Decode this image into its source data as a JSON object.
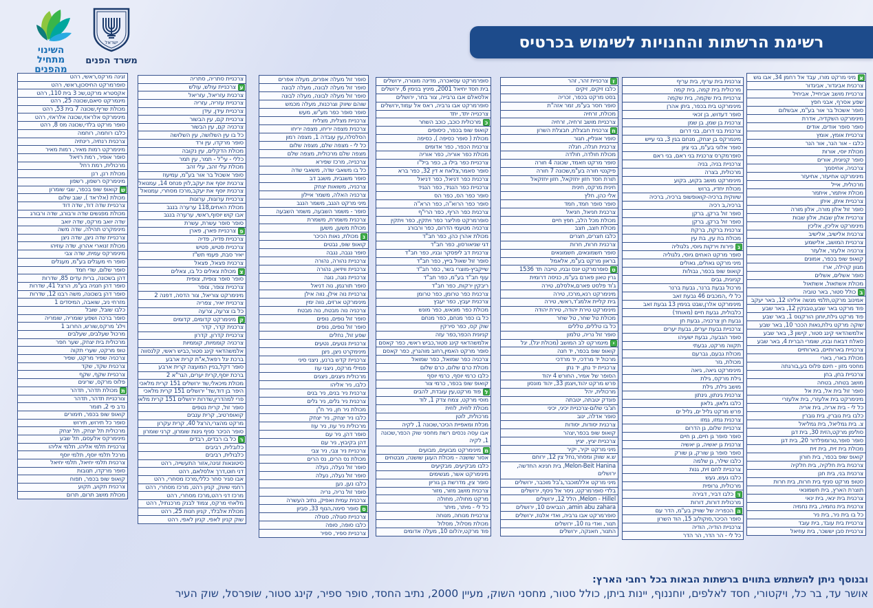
{
  "header": {
    "title": "רשימת הרשתות והחנויות לשימוש בכרטיס"
  },
  "logos": {
    "slogan_lines": [
      "השינוי",
      "מתחיל",
      "מהפנים"
    ],
    "ministry_name": "משרד הפנים",
    "emblem_label": "ישראל"
  },
  "footer": {
    "heading": "ובנוסף ניתן להשתמש בתווים ברשתות הבאות בכל רחבי הארץ:",
    "networks": "אושר עד, בר כל, ויקטורי, חסד לאלפים, יוחננוף, יינות ביתן, כולל סטור, מחסני השוק, מעיין 2000, נתיב החסד, סופר ספיר, קינג סטור, שופרסל, שוק העיר"
  },
  "colors": {
    "banner": "#1d4b8b",
    "box_border": "#34508c",
    "text": "#1c3f7d",
    "marker_green": "#3fae49",
    "background": "#dce2f4"
  },
  "columns": [
    {
      "side": "rightmost",
      "items": [
        {
          "t": "מיני מרקט מורו, עבד אל רחמן 34, אבו גוש",
          "m": "א"
        },
        "צרכנית אביגדור, אביגדור",
        "צרכניית מושב אביחייל, אביחיל",
        "שפע אסרף, אבני חפץ",
        "סופר אשכול בר אור בע\"מ, אבשלום",
        "מינימרקט השקדיה, אדרת",
        "סופר סופר אודים, אודים",
        "צרכניית אומץ, אומץ",
        "כלבו - אור הנר, אור הנר",
        "מכולת יוסי, אורות",
        "סופר קניונית, אורים",
        "צרכניה, אחיסמך",
        "מינימרקט אחיעזר, אחיעזר",
        "מרכולית, אייל",
        "מכולת איתמר, איתמר",
        "צרכניית איתן, איתן",
        "סופר זול אלון מורה, אלון מורה",
        "צרכניית אלון שבות, אלון שבות",
        "מינימרקט אליכין, אליכין",
        "צרכנית אלישיב, אלישיב",
        "צרכניית המושב, אלישמע",
        "צרכניה אלעזר, אלעזר",
        "קואופ שופ בכפר, אמונים",
        "מגוון קהילה, ארז",
        "סופר אשלים, אשלים",
        "מכולת אשתאול, אשתאול",
        {
          "t": "כולל סטור, באר טוביה",
          "m": "ב"
        },
        "אמינוב מרקט,תלמי מנשה אליהו 12, באר יעקב",
        "פוד מרקט באר שבע,טבנקין 12, באר שבע",
        "פוד מרקט גילת,יוחנן הורקנוס 1, באר שבע",
        "שוקה מרקט גילת,נאות הככר 10, באר שבע",
        "אלמשהדאוי קינג סטור, קישון 3, באר שבע",
        "סאלח דבאח ובניו, שומרי הברית 4, באר שבע",
        "צרכניית בארותיים, בארותיים",
        "מכולת בארי, בארי",
        "מחסני מזון - חינם פלוס בע,בורגתה",
        "צרכניית בחן, בחן",
        "מושב בטחה, בטחה",
        "סופר זול בית אל, בית אל",
        "מינימרקט בית אלעזרי, בית אלעזרי",
        "כל לי - בית אריה, בית אריה",
        "כלבו בית גוברין, בית גוברין",
        "צ. בית גמליאל, בית גמליאל",
        "סולימן מרקט,הזית 30, בית דגן",
        "סופר סופר,טרומפלדור 20, בית דגן",
        "מכולת בית זית, בית זית",
        "קואופ שופ בכפר, בית חורון",
        "צרכנית בית חלקיה, בית חלקיה",
        "צרכנית בני, בית חנן",
        "סטופ מרקט סניף בית חרות, בית חרות",
        "תוצרת הארץ, בית חשמונאי",
        "צרכנית בית ינאי, בית ינאי",
        "צרכנית בית נחמיה, בית נחמיה",
        "כל בו בית ניר, בית ניר",
        "צרכניית בית עובד, בית עובד",
        "צרכניית סבן יששכר, בית עוזיאל"
      ]
    },
    {
      "side": "2nd-from-right",
      "items": [
        "צרכנית בית עריף, בית עריף",
        "מרכולית בית קמה, בית קמה",
        "צרכניית בית שקמה, בית שקמה",
        "מינימרקט בית בכפר, ביתן אהרן",
        "סופר דעדוש, בן זכאי",
        "צרכנית בן שמן, בן שמן",
        "צרכנית בני דרום, בני דרום",
        "מינמרקס בן יצחק, מנחם בגין 3, בני עייש",
        "סופר אלוני בע\"מ, בני ציון",
        "סופרמקרס צרכנית בני ראם, בני ראם",
        "צרכניית בניה, בניה",
        "מרכולית, בצרה",
        "מינימרקט מושב בקוע, בקוע",
        "מכולת יחדיו, ברוש",
        "שיווקית ברכיה-קואופשופ ברכיה, ברכיה",
        "ברכיה,ב רכיה",
        "סופר זול ברקן, ברקן",
        "סופר זול ברקן, ברקן",
        "צרכנית ברקת, ברקת",
        "מכולת בת עין, בת עין",
        {
          "t": "פירות וירקות גיוסי, גלגוליה",
          "m": "ג"
        },
        "סופר מרקט האחים גיוסי, גלגוליה",
        "מיני מרקט גאולים, גאולים",
        "קואופ שופ בכפר, גבולות",
        "קניונית, גבים",
        "מרכול גבעת ברנר, גבעת ברנר",
        "כל לי ,המכבים 46 גבעת זאב",
        "מינימרקט אלרן,שבט בנימין 13 גבעת זאב",
        "כלבולית, גבעת חיים (מאוחד)",
        "גבעת חן צרכניה, גבעת חן",
        "צרכניית גבעת יערים, גבעת יערים",
        "סופר הגבעה, גבעת ישעיהו",
        "תקווה מרקט, גבעתי",
        "מכולת גבעם, גברעם",
        "מכולת, גזר",
        "מינימרקט גיאה, גיאה",
        "גילת מרקס, גילת",
        "מושב גילת, גילת",
        "צרכנית גינתון, גינתון",
        "כלבו גלאון, גלאון",
        "פרש מרקט גליל ים, גליל ים",
        "צרכנית גמזו, גמזו",
        "צרכניית שלום, גן הדרום",
        "סופר סופר גן חיים, גן חיים",
        "צרכנית גן יאשיה, גן יאשיה",
        "סופר סופר גן שורק, גן שורק",
        "כלבו שילר, גן שלמה",
        "צרכניית לחם זית, גנות",
        "כלבו געש, געש",
        "מרכולית, גרופית",
        {
          "t": "כלבו דביר, דבירה",
          "m": "ד"
        },
        "מרכולית דורות, דורות",
        {
          "t": "הכפריה של שוויק בע\"מ, הדר עם",
          "m": "ה"
        },
        "סופר הכיכר,סוקולוב 15, הוד השרון",
        "צרכניית הודיה, הודיה",
        "כל לי - הר הדר, הר הדר"
      ]
    },
    {
      "side": "3rd-from-right",
      "items": [
        {
          "t": "צרכניית זהר, זהר",
          "m": "ז"
        },
        "כלבו זיקים, זיקים",
        "בסט מרקט בכפר, זכריה",
        "סופר חסר בע\"מ, זמר אזה\"ת",
        "מכולת, זרחיה",
        "צרכניית מושב זרחיה, זרחיה",
        {
          "t": "צרכנית חבצלת, חבצלת השרון",
          "m": "ח"
        },
        "סופר אונליין, חגור",
        "צרכנית חגלה, חגלה",
        "מכולת חולדה, חולדה",
        "סופר מרקט חאמד, שכונה 4 חורה",
        "פיקנטי חורה בע\"מ,שכונה 7 חורה",
        "תורת חסד חזון יחזקאל, חזון יחזקאל",
        "חינית מרקס, חינית",
        "אלי כהן, חלץ",
        "סופר סופר חמד, חמד",
        "צרכנית חניאל, חניאל",
        "מכולת מכל הלב, חפץ חיים",
        "מכולת חצב, חצב",
        "כלבו חצרים, חצרים",
        "צרכנית חרות, חרות",
        "סופר חשמונאים, חשמונאים",
        "בראון מרקט בע\"מ, אלאמל",
        {
          "t": "סופרמרקט יונס ובניו, טייבה תד 1536",
          "m": "ט"
        },
        "גרין טאון פארם בע\"מ, כניסה דרומית",
        "ג'וד פלסט פארם,אלסלם, טירה",
        "מינימרקט רנא,מרכז, טירה",
        "בית קליית אלמג'ד,ראשי, טירה",
        "מינימרקט טירת יהודה, טירת יהודה",
        "מכולת טל שחר, טל שחר",
        "כל בו טללים, טללים",
        "סופר זול נריה, טלמון",
        {
          "t": "מינמרקט לב המושב (מכולת יגל), יגל",
          "m": "י"
        },
        "קואופ שופ בכפר, יד חנה",
        "מרכול יד מרדכי, יד מרדכי",
        "צרכניית יד נתן, יד נתן",
        "הסופר של אמיר, החורש 4 יהוד",
        "פרש מרקט יהוד,ויצמן 33, יהוד מונסון",
        "מרכולית, יהל",
        "פונדק יטבתה, יטבתה",
        "חג'בי שלום-צרכניית יכיני, יכיני",
        "סופר אדלה, ינוב",
        "צרכנית יסודות, יסודות",
        "קואופ שופ בכפר,יצהר",
        "צרכניית יציץ, יציץ",
        "מיני מרקט יקיר, יקיר",
        "ש.א שווק ומסחר,נחל צין 12, ירוחם",
        "Melon-Beit Hanina, בית חנינא החדשה, ירושלים",
        "מיני מרקט אללמוכבר,ג'בל מוכבר, ירושלים",
        "בלדי סופרמרקט, ניסר אל ניסף, ירושלים",
        "Melon - Hillel, הלל 12, ירושלים",
        "amin abu zahara, הנביאים 10, ירושלים",
        "סופרמרקט אבו גרביה, ואדי אלגוז, ירושלים",
        "תנור, ואדי גוז 10, ירושלים",
        "התנור, חאנקה, ירושלים"
      ]
    },
    {
      "side": "4th-from-right",
      "items": [
        "סופרמרקט עסאכרה, מדינה מונורה, ירושלים",
        "בית חסד יחיאל 2001, מיניץ בנימין 6, ירושלים",
        "אלסאלם אבו גרבייה, צור בחר, ירושלים",
        "סופרמרקט אבו גרביה, ראס אל עמוד,ירושלים",
        "צרכנייה יתד, יתד",
        {
          "t": "מרכולית כוכב, כוכב השחר",
          "m": "כ"
        },
        "קואופ שופ בכפר, כיסופים",
        "מכולת ( סופר כסיפה ), כסיפה",
        "צרכנית הכפר, כפר אדומים",
        "מכולת כפר אוריה, כפר אוריה",
        "צרכניית כפר בילו ב, כפר ביל\"ו",
        "סופר סאמר,צלאח א דין 32, כפר ברא",
        "צרכנית כפר דניאל, כפר דניאל",
        "צרכניית כפר הנגיד, כפר הנגיד",
        "סופר כפר הס, כפר הס",
        "סופר כפר הרוא\"ה, כפר הרא\"ה",
        "צרכנית כפר הריף, כפר הרי\"ף",
        "סופרמרקט פוליצר כפר ויתקין, כפר ויתקין",
        "צרכניה מטעמי הדרום, כפר ורבורג",
        "מכולת אהרן כהן, כפר חב\"ד",
        "דגי שניאורסון, כפר חב\"ד",
        "צרכנית דב ליפסקר ובניו, כפר חב\"ד",
        "סופר זול שאול בייץ, כפר חב\"ד",
        "שייקביץ-מוצרי בשר, כפר חב\"ד",
        "עוף חב\"ד בע\"מ, כפר חב\"ד",
        "ריבקין ירקות, כפר חב\"ד",
        "צרכנית כפר טרומן, כפר טרומן",
        "צרכנית יעבץ, כפר יעבץ",
        "מכולת כפר מונאש, כפר מונש",
        "כל בו כפר מנחם, כפר מנחם",
        "שוק קס, כפר סירקין",
        "קניונית הכפר,כפר עזה",
        "אלמשהדאוי קינג סטור,כביש ראשי, כפר קאסם",
        "סופר מרקט האמין,רחוב מוהגרין, כפר קאסם",
        "צרכניה כפר שמואל, כפר שמואל",
        "מכולת כרם שלום, כרם שלום",
        "כלבו כרמי יוסף, כרמי יוסף",
        "קואופ שופ בכפר, כרמי צור",
        {
          "t": "פוד מרקט,עין עובדת, להבים",
          "m": "ל"
        },
        "מוסי מרקט, צמח צדק 1, לוד",
        "מכולת לוזית, לוזית",
        "מרכולית, לוטן",
        "מכלת ומאפיית הכיכר,שכונה 1, לקיה",
        "אבו עסה נכסים רשת מחסני שוק הכפר,שכונה 1, לקיה",
        {
          "t": "מינימרקט מבועים, מבועים",
          "m": "מ"
        },
        "אסור שושנה - מכולת העוגן שושנה, מבטחים",
        "כלבו מבקיעים, מבקיעים",
        "מינימרקט אשר, מגשימים",
        "סופר צין, מדרשת בן גוריון",
        "צרכנית מושב מזור, מזור",
        "מרקט מחולה, מחולה",
        "כל לי - מיתר, מיתר",
        "צרכניית מנוחה, מנוחה",
        "מכולת מסלול, מסלול",
        "פוד מרקט,יהלום 10, מעלה אדומים"
      ]
    },
    {
      "side": "5th-from-right",
      "items": [
        "סופר זול מעלה אפרים, מעלה אפרים",
        "סופר זול מעלה לבונה, מעלה לבונה",
        "סופר זול מעלה לבונה, מעלה לבונה",
        "שוהם שיווק וצרכנות, מעלה מכמש",
        "סופר סופר כפר מע\"ש, מעש",
        "צרכניית מצלית, מצליח",
        "צרכנית מצפה יריחו, מצפה יריחו",
        "הסלסלה,עין עובדה 1, מצפה רמון",
        "כל לי - מצפה שלם, מצפה שלום",
        "מצפה שלם מרכולית, מצפה שלם",
        "צרכנייה, מרכז שפירא",
        "כל בו משאבי שדה, משאבי שדה",
        "סופר משגבית, משגב דב",
        "צרכניה, משואות יצחק",
        "צרכניה האלה, משמר איילון",
        "מיני מרקט הנגב, משמר הנגב",
        "סופר - משמר השבעה, משמר השבעה",
        "צרכנית משמרת, משמרת",
        "מכולת משען, משען",
        {
          "t": "מכולת, נאות הכיכר",
          "m": "נ"
        },
        "קואופ שופ, נבטים",
        "סופר נגבה, נגבה",
        "צרכניית נהורה, נהורה",
        "צרכניית וויזיאן, נהורה",
        "צרכניית נוגה, נוגה",
        "סופר תורגמן, נוה דניאל",
        "צרכניית נוה אילן, נווה אילן",
        "מינימרקט ארזים, נווה ימין",
        "צרכניה נוה מבטח, נוה מבטח",
        "סופר זול נופים, נופים",
        "סופר זול נופים, נופים",
        "שפע זול, נחלים",
        "צרכניית נטעים, נטעים",
        "מינימקרט ניצן, ניצן",
        "צרכניית קדש ברנע, ניצני סיני",
        "פמילי מרקס, ניצני עוז",
        "מרכולית ניצנים, ניצנים",
        "כלבו, ניר אליהו",
        "צרכנית ניר בנים, ניר בנים",
        "צרכנית ניר גלים, ניר גלים",
        "מכולת ניר חן, ניר ח\"ן",
        "כלבו ניר יצחק, ניר יצחק",
        "מרכולית ניר עוז, ניר עוז",
        "סופר דהן, ניר עם",
        "דהן בקיבוץ, ניר עם",
        "צרכניית ניר צבי, ניר צבי",
        "מכולת נס הרים, נס הרים",
        "סופר זול נעלה, נעלה",
        "סופר זול נעלה, נעלה",
        "כלבו נען, נען",
        "סופר זול נריה, נריה",
        "צרכנית עמית ואפיק, נתיב העשרה",
        {
          "t": "סופר סימה,הנוף 33, סביון",
          "m": "ס"
        },
        "צרכניית סגולה, סגולה",
        "כלבו סופה, סופה",
        "צרכניית ספיר, ספיר"
      ]
    },
    {
      "side": "6th-from-right",
      "items": [
        "צרכניית סתריה, סתריה",
        {
          "t": "צרכניית עולש, עולש",
          "m": "ע"
        },
        "צרכנית עזריאל, עזריאל",
        "צרכניית עזריה, עזריה",
        "צרכניית עידן, עידן",
        "צרכניית קם, עין הבשור",
        "צרכניה קם, עין הבשור",
        "כל בו עין השלושה, עין השלושה",
        "סופר מרקדו, עין ורד",
        "מכולת הדקלים, עין נקובה",
        "כללי - עי\"ל - תמר, עין תמר",
        "מכולת עלי זהב, עלי זהב",
        "סופר אשכול בר אור בע\"מ, עמיעוז",
        "צרכנית יוסף את יעקב,לוין פנחס 14, עמנואל",
        "צרכנית יוסף את יעקב,מרכז מסחרי, עמנואל",
        "צרכניית ערוגות, ערוגות",
        "מכולת האחים,118 ערערה בנגב",
        "אבו קוש יוסוף,ראשי, ערערה בנגב",
        "סופר סופר עשרת, עשרת",
        {
          "t": "צרכניית פארן, פארן",
          "m": "פ"
        },
        "צרכניית פדיה, פדיה",
        "צרכניית פטיש, פטיש",
        "יאיר סבת, פעמי תש\"ז",
        "צרכנית פצאל, פצאל",
        {
          "t": "מכולת צאלים כל בו, צאלים",
          "m": "צ"
        },
        "סופר סופר צופית, צופית",
        "צרכניית צופר, צופר",
        "מינימרקט צוריאל, צור הדסה, דפנה 2",
        "צרכניית יאיר, צפריה",
        "כל בו צרעה, צרעה",
        {
          "t": "מינימרקט קדומים, קדומים",
          "m": "ק"
        },
        "צרכנית קדר, קדר",
        "צרכניית קדרון, קדרון",
        "צרכניה קוממיות, קוממיות",
        "אלמשהדאוי קינג סטור,כביש ראשי, קלנסווה",
        "ברכת יגל רפאל,א\"ת קרית ארבע",
        "סופר דקל,בניין המועצה קרית ארבע",
        "ברכת יוסף,קרית יערים, הגר\"א 2",
        "מכולת מיכאלי,שד ירושלים 151 קרית מלאכי",
        "היפר בן דוד,שד' ירושלים 151 קרית מלאכי",
        "פרי למהדרין,שדרות ירושלים 151 קרית מלאכי",
        "סופר זול, קרית נטפים",
        "קואופרטיב, קרית ענבים",
        "מרקט מהצרי,הרצל 40, קרית עקרון",
        "סופר הכיכר סניף גינות שומרון, קרני שומרון",
        {
          "t": "כל בו רבדים, רבדים",
          "m": "ר"
        },
        "כלובלית, רביבים",
        "כלבולית, רביבים",
        "סיטונאות זגינה,אזור התעשייה, רהט",
        "דני חוט,דרך אלסלאם, רהט",
        "אבו סגיר סחר כללי,מרכז מסחרי, רהט",
        "רחמי שיווק, קניון רהט, מרכז מסחרי, רהט",
        "מרכז דני רהט,מרכז מסחרי, רהט",
        "מלאחי מרקס, צמוד לבנק מרכנתיל, רהט",
        "מכולת אלבלד, קניון חנות 25, רהט",
        "שוק קניון לאפי, קניון לאפי, רהט"
      ]
    },
    {
      "side": "leftmost",
      "items": [
        "זגינה מרקס,ראשי, רהט",
        "סופרמרקט החיסכון,ראשי, רהט",
        "אקסטרא מרקט,שכ 3 בית 110, רהט",
        "מינמרקט סיאם,שכונה 25, רהט",
        "מכולת שריף,שכונה 7 בית 53, רהט",
        "מינימרקס אלראזי,שכונה אלראזי, רהט",
        "סופר מרקט בלדי,שכונה מס 8, רהט",
        "כלבו רוחמה, רוחמה",
        "צרכנית רנתיה, רינתיה",
        "מינימרקט רמות מאיר, רמות מאיר",
        "סופר אופיר, רמת רזיאל",
        "מרכולית, רמת רחל",
        "מכולת רנן, רנן",
        "מינימרקס רשפון, רשפון",
        {
          "t": "קואופ שופ בכפר, שבי שומרון",
          "m": "ש"
        },
        "מכולת (אלראד ), שגב שלום",
        "צרכניית שדה דוד, שדה דוד",
        "מכולת מפגשים שדה ורבורג, שדה ורבורג",
        "שדה יואב מרקס, שדה יואב",
        "מינימקרט תהילה, שדה משה",
        "צרכניית שדה ניצן, שדה ניצן",
        "מכולת זנוארי אהרון, שדה עוזיהו",
        "מינימרקס עמית, שדה צבי",
        "סופר חי מעגלים בע\"מ, מעגלים",
        "סופר שלום, שדי חמד",
        "דהן בשכונה, ברית עדים 85, שדרות",
        "סופר דהן חנניה בע\"מ, הרצל 41, שדרות",
        "סופר דהן בשכונה, משה רבנו 12, שדרות",
        "מזרחי ניב, שואבה, המיסדים 1",
        "כלבו שובל, שובל",
        "סופר ברכה ושפע שומריה, שומריה",
        "וילג' מרקס,שורש, החרוב 1",
        "מרכול שעלבים, שעלבים",
        "מרכולית בית יצחק, שער חפר",
        "טופ מרקט, שערי תקוה",
        "צרכניה שפיר מרקט, שפיר",
        "צרכנית שקד, שקד",
        "צרכניית שקף, שקף",
        "פלוס מרקס, שריגים",
        {
          "t": "מכולת תדהר, תדהר",
          "m": "ת"
        },
        "צורכניית תדהר, תדהר",
        "נדב פי 2, תומר",
        "קואופ שופ בכפר, תימורים",
        "סופר כל תירוש, תירוש",
        "מרכולית תל יצחק, תל יצחק",
        "מינימרקס אלעסם, תל שבע",
        "צרכניית תלמי אליהו, תלמי אליהו",
        "מרכל תלמי יוסף, תלמי יוסף",
        "צרכנית תלמי יחיאל, תלמי יחיאל",
        "סופר מרקדו, תנובות",
        "קואופ שופ בכפר, תפוח",
        "צרכנית תקוע, תקוע",
        "מכולת מושב תרום, תרום"
      ]
    }
  ]
}
